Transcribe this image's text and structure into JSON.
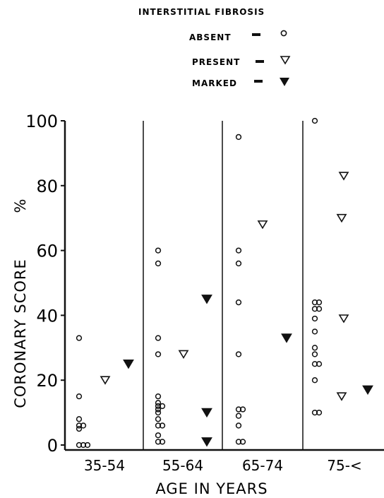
{
  "chart_data": {
    "type": "scatter",
    "title": "INTERSTITIAL FIBROSIS",
    "xlabel": "AGE IN YEARS",
    "ylabel": "CORONARY SCORE",
    "y_unit": "%",
    "ylim": [
      0,
      100
    ],
    "yticks": [
      "0",
      "20",
      "40",
      "60",
      "80",
      "100"
    ],
    "categories": [
      "35-54",
      "55-64",
      "65-74",
      "75-<"
    ],
    "legend": [
      {
        "label": "ABSENT",
        "symbol": "open-circle"
      },
      {
        "label": "PRESENT",
        "symbol": "open-triangle-down"
      },
      {
        "label": "MARKED",
        "symbol": "filled-triangle-down"
      }
    ],
    "series": [
      {
        "name": "ABSENT",
        "groups": [
          {
            "category": "35-54",
            "values": [
              33,
              15,
              8,
              6,
              6,
              5,
              0,
              0,
              0
            ]
          },
          {
            "category": "55-64",
            "values": [
              60,
              56,
              33,
              28,
              15,
              13,
              12,
              12,
              11,
              10,
              8,
              6,
              6,
              3,
              1,
              1
            ]
          },
          {
            "category": "65-74",
            "values": [
              95,
              60,
              56,
              44,
              28,
              11,
              11,
              9,
              6,
              1,
              1
            ]
          },
          {
            "category": "75-<",
            "values": [
              100,
              44,
              44,
              42,
              42,
              39,
              35,
              30,
              28,
              25,
              25,
              20,
              10,
              10
            ]
          }
        ]
      },
      {
        "name": "PRESENT",
        "groups": [
          {
            "category": "35-54",
            "values": [
              20
            ]
          },
          {
            "category": "55-64",
            "values": [
              28
            ]
          },
          {
            "category": "65-74",
            "values": [
              68
            ]
          },
          {
            "category": "75-<",
            "values": [
              83,
              70,
              39,
              15
            ]
          }
        ]
      },
      {
        "name": "MARKED",
        "groups": [
          {
            "category": "35-54",
            "values": [
              25
            ]
          },
          {
            "category": "55-64",
            "values": [
              45,
              10,
              1
            ]
          },
          {
            "category": "65-74",
            "values": [
              33
            ]
          },
          {
            "category": "75-<",
            "values": [
              17
            ]
          }
        ]
      }
    ],
    "grid": false,
    "legend_position": "top-center",
    "colors": {
      "ink": "#111111",
      "background": "#ffffff"
    }
  }
}
